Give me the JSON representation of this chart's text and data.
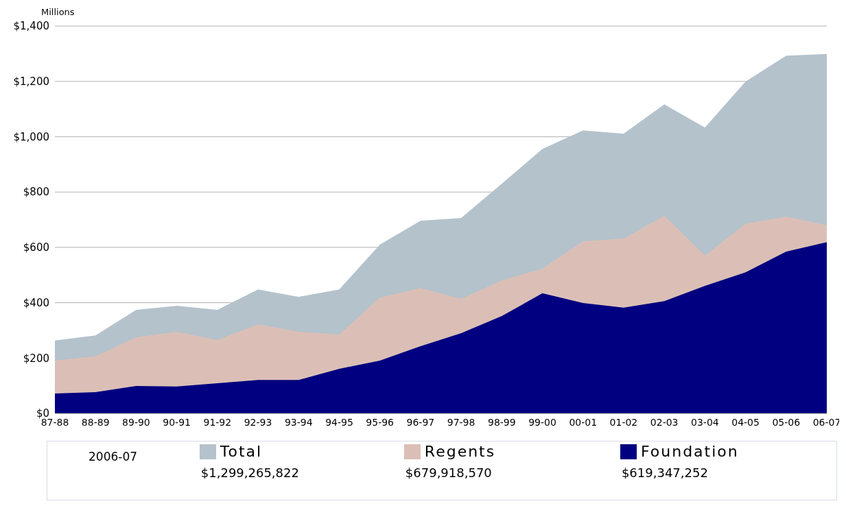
{
  "chart_data": {
    "type": "area",
    "ylabel": "Millions",
    "legend_title": "2006-07",
    "categories": [
      "87-88",
      "88-89",
      "89-90",
      "90-91",
      "91-92",
      "92-93",
      "93-94",
      "94-95",
      "95-96",
      "96-97",
      "97-98",
      "98-99",
      "99-00",
      "00-01",
      "01-02",
      "02-03",
      "03-04",
      "04-05",
      "05-06",
      "06-07"
    ],
    "series": [
      {
        "name": "Total",
        "color": "#b4c2cc",
        "values": [
          263,
          282,
          374,
          389,
          374,
          448,
          421,
          448,
          610,
          696,
          706,
          830,
          956,
          1023,
          1011,
          1117,
          1033,
          1199,
          1293,
          1299
        ]
      },
      {
        "name": "Regents",
        "color": "#dbbfb6",
        "values": [
          191,
          206,
          275,
          295,
          265,
          322,
          295,
          285,
          419,
          453,
          414,
          481,
          523,
          622,
          632,
          714,
          570,
          686,
          711,
          680
        ]
      },
      {
        "name": "Foundation",
        "color": "#000080",
        "values": [
          72,
          77,
          99,
          97,
          109,
          121,
          121,
          161,
          191,
          243,
          290,
          352,
          434,
          399,
          382,
          406,
          461,
          510,
          585,
          619
        ]
      }
    ],
    "annotations": [
      "$1,299,265,822",
      "$679,918,570",
      "$619,347,252"
    ],
    "ylim": [
      0,
      1400
    ],
    "yticks": [
      {
        "value": 0,
        "label": "$0"
      },
      {
        "value": 200,
        "label": "$200"
      },
      {
        "value": 400,
        "label": "$400"
      },
      {
        "value": 600,
        "label": "$600"
      },
      {
        "value": 800,
        "label": "$800"
      },
      {
        "value": 1000,
        "label": "$1,000"
      },
      {
        "value": 1200,
        "label": "$1,200"
      },
      {
        "value": 1400,
        "label": "$1,400"
      }
    ],
    "grid": "y",
    "legend": "bottom"
  }
}
